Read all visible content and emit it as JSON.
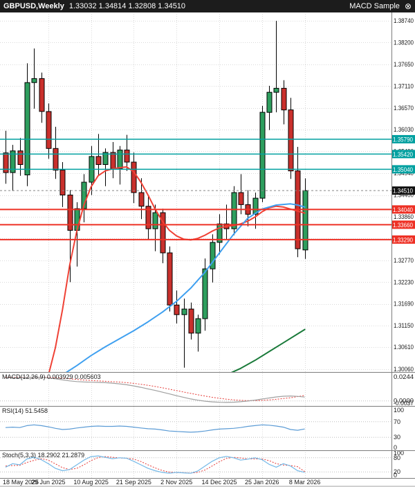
{
  "window": {
    "title_bar": {
      "symbol": "GBPUSD,Weekly",
      "ohlc": "1.33032 1.34814 1.32808 1.34510",
      "expert_name": "MACD Sample",
      "close_glyph": "⊗"
    }
  },
  "colors": {
    "bull_candle": "#2e9e5e",
    "bear_candle": "#c9302c",
    "candle_outline": "#000000",
    "ma_fast": "#ef4135",
    "ma_mid": "#3fa0f0",
    "ma_slow": "#1a7a3a",
    "teal_line": "#00a0a0",
    "red_line": "#ee3024",
    "price_marker_bg": "#111111",
    "macd_main": "#a0a0a0",
    "macd_signal": "#e53935",
    "rsi_main": "#5b9bd5",
    "stoch_main": "#74b9e8",
    "stoch_signal": "#e53935",
    "grid": "#d9d9d9",
    "level_dotted": "#bdbdbd",
    "axis_text": "#1a1a1a",
    "panel_border": "#7c7c7c",
    "titlebar_bg": "#1c1c1c",
    "titlebar_text": "#ffffff"
  },
  "price_axis_labels": [
    "1.38740",
    "1.38200",
    "1.37650",
    "1.37110",
    "1.36570",
    "1.36030",
    "1.35490",
    "1.34940",
    "1.34400",
    "1.33860",
    "1.33320",
    "1.32770",
    "1.32230",
    "1.31690",
    "1.31150",
    "1.30610",
    "1.30060"
  ],
  "levels": {
    "resistance_teal": [
      "1.35790",
      "1.35420",
      "1.35040"
    ],
    "support_red": [
      "1.34040",
      "1.33660",
      "1.33290"
    ],
    "current_price": "1.34510"
  },
  "chart_data": {
    "type": "candlestick",
    "title": "GBPUSD Weekly",
    "ylim": [
      1.299,
      1.3888
    ],
    "x_tick_indices": [
      0,
      6,
      12,
      18,
      24,
      30,
      36,
      42
    ],
    "x_tick_labels": [
      "18 May 2025",
      "29 Jun 2025",
      "10 Aug 2025",
      "21 Sep 2025",
      "2 Nov 2025",
      "14 Dec 2025",
      "25 Jan 2026",
      "8 Mar 2026"
    ],
    "ohlc": [
      [
        1.3545,
        1.36,
        1.3468,
        1.3496
      ],
      [
        1.3496,
        1.3565,
        1.345,
        1.355
      ],
      [
        1.355,
        1.3582,
        1.3488,
        1.3516
      ],
      [
        1.349,
        1.3768,
        1.3462,
        1.372
      ],
      [
        1.372,
        1.3805,
        1.3655,
        1.373
      ],
      [
        1.373,
        1.3745,
        1.362,
        1.3648
      ],
      [
        1.3648,
        1.3668,
        1.353,
        1.3556
      ],
      [
        1.3556,
        1.361,
        1.348,
        1.3502
      ],
      [
        1.3502,
        1.3522,
        1.341,
        1.344
      ],
      [
        1.344,
        1.3452,
        1.3223,
        1.3352
      ],
      [
        1.3352,
        1.3422,
        1.3262,
        1.3406
      ],
      [
        1.3406,
        1.3492,
        1.3372,
        1.3472
      ],
      [
        1.3472,
        1.3562,
        1.344,
        1.3536
      ],
      [
        1.3536,
        1.3592,
        1.349,
        1.3516
      ],
      [
        1.3516,
        1.3556,
        1.3462,
        1.3546
      ],
      [
        1.3546,
        1.3572,
        1.3482,
        1.3506
      ],
      [
        1.3506,
        1.3562,
        1.3466,
        1.3552
      ],
      [
        1.3552,
        1.359,
        1.35,
        1.3522
      ],
      [
        1.3522,
        1.3546,
        1.342,
        1.3446
      ],
      [
        1.3446,
        1.3482,
        1.338,
        1.3412
      ],
      [
        1.3412,
        1.344,
        1.333,
        1.3356
      ],
      [
        1.3356,
        1.3416,
        1.33,
        1.3396
      ],
      [
        1.3396,
        1.3406,
        1.327,
        1.3296
      ],
      [
        1.3296,
        1.3312,
        1.315,
        1.3166
      ],
      [
        1.3166,
        1.3202,
        1.312,
        1.3142
      ],
      [
        1.3142,
        1.3182,
        1.301,
        1.3156
      ],
      [
        1.3156,
        1.3172,
        1.308,
        1.3096
      ],
      [
        1.3096,
        1.3142,
        1.305,
        1.3132
      ],
      [
        1.3132,
        1.3282,
        1.3102,
        1.3256
      ],
      [
        1.3256,
        1.3342,
        1.3222,
        1.3322
      ],
      [
        1.3322,
        1.3392,
        1.3292,
        1.3368
      ],
      [
        1.3368,
        1.3416,
        1.333,
        1.3356
      ],
      [
        1.3356,
        1.3462,
        1.334,
        1.3446
      ],
      [
        1.3446,
        1.3492,
        1.3392,
        1.3416
      ],
      [
        1.3416,
        1.3452,
        1.3362,
        1.3392
      ],
      [
        1.3392,
        1.3446,
        1.3356,
        1.3432
      ],
      [
        1.3432,
        1.3662,
        1.3422,
        1.3646
      ],
      [
        1.3646,
        1.3712,
        1.3602,
        1.3696
      ],
      [
        1.3696,
        1.3874,
        1.3646,
        1.3706
      ],
      [
        1.3706,
        1.3726,
        1.3616,
        1.3652
      ],
      [
        1.3652,
        1.3682,
        1.348,
        1.35
      ],
      [
        1.35,
        1.356,
        1.3285,
        1.3306
      ],
      [
        1.33032,
        1.34814,
        1.32808,
        1.3451
      ]
    ],
    "overlays": [
      {
        "name": "ma-fast-red",
        "color_key": "ma_fast",
        "points": [
          [
            6,
            1.299
          ],
          [
            7,
            1.306
          ],
          [
            8,
            1.3155
          ],
          [
            9,
            1.3265
          ],
          [
            10,
            1.335
          ],
          [
            11,
            1.3415
          ],
          [
            12,
            1.346
          ],
          [
            13,
            1.3488
          ],
          [
            14,
            1.35
          ],
          [
            15,
            1.3505
          ],
          [
            16,
            1.3508
          ],
          [
            17,
            1.351
          ],
          [
            18,
            1.3498
          ],
          [
            19,
            1.3472
          ],
          [
            20,
            1.344
          ],
          [
            21,
            1.3405
          ],
          [
            22,
            1.3375
          ],
          [
            23,
            1.3352
          ],
          [
            24,
            1.3338
          ],
          [
            25,
            1.333
          ],
          [
            26,
            1.3328
          ],
          [
            27,
            1.3332
          ],
          [
            28,
            1.334
          ],
          [
            29,
            1.335
          ],
          [
            30,
            1.3358
          ],
          [
            31,
            1.3362
          ],
          [
            32,
            1.3364
          ],
          [
            33,
            1.3368
          ],
          [
            34,
            1.3375
          ],
          [
            35,
            1.3385
          ],
          [
            36,
            1.3398
          ],
          [
            37,
            1.3408
          ],
          [
            38,
            1.3412
          ],
          [
            39,
            1.341
          ],
          [
            40,
            1.3405
          ],
          [
            41,
            1.34
          ],
          [
            42,
            1.3395
          ]
        ]
      },
      {
        "name": "ma-mid-blue",
        "color_key": "ma_mid",
        "points": [
          [
            8,
            1.2992
          ],
          [
            10,
            1.3015
          ],
          [
            12,
            1.304
          ],
          [
            14,
            1.3062
          ],
          [
            16,
            1.3082
          ],
          [
            18,
            1.3102
          ],
          [
            20,
            1.3124
          ],
          [
            22,
            1.3148
          ],
          [
            24,
            1.3175
          ],
          [
            26,
            1.3208
          ],
          [
            28,
            1.3248
          ],
          [
            30,
            1.3295
          ],
          [
            32,
            1.3342
          ],
          [
            34,
            1.3382
          ],
          [
            36,
            1.3405
          ],
          [
            38,
            1.3415
          ],
          [
            40,
            1.3418
          ],
          [
            41,
            1.3415
          ],
          [
            42,
            1.341
          ]
        ]
      },
      {
        "name": "ma-slow-green",
        "color_key": "ma_slow",
        "points": [
          [
            31,
            1.2992
          ],
          [
            33,
            1.3008
          ],
          [
            35,
            1.3028
          ],
          [
            37,
            1.305
          ],
          [
            39,
            1.3072
          ],
          [
            41,
            1.3094
          ],
          [
            42,
            1.3105
          ]
        ]
      }
    ],
    "indicators": {
      "macd": {
        "label": "MACD(12,26,9) 0.003929 0.005603",
        "axis_labels": [
          "0.0244",
          "0.0000",
          "-0.0037"
        ],
        "levels": [
          0
        ],
        "main": [
          0.0235,
          0.0236,
          0.0234,
          0.0238,
          0.0241,
          0.0239,
          0.0233,
          0.0224,
          0.0213,
          0.0203,
          0.0196,
          0.0192,
          0.019,
          0.0188,
          0.0185,
          0.018,
          0.0173,
          0.0164,
          0.0152,
          0.0138,
          0.0122,
          0.0106,
          0.0089,
          0.0071,
          0.0053,
          0.0036,
          0.002,
          0.0007,
          -0.0003,
          -0.001,
          -0.0014,
          -0.0015,
          -0.0013,
          -0.0008,
          -0.0001,
          0.0008,
          0.0019,
          0.003,
          0.004,
          0.0047,
          0.005,
          0.0046,
          0.0039
        ],
        "signal": [
          0.024,
          0.024,
          0.0239,
          0.0239,
          0.024,
          0.024,
          0.0238,
          0.0235,
          0.023,
          0.0224,
          0.0218,
          0.0212,
          0.0207,
          0.0203,
          0.0199,
          0.0195,
          0.0191,
          0.0185,
          0.0178,
          0.0169,
          0.0158,
          0.0146,
          0.0133,
          0.0119,
          0.0105,
          0.009,
          0.0076,
          0.0062,
          0.0049,
          0.0037,
          0.0027,
          0.0018,
          0.0011,
          0.0006,
          0.0003,
          0.0003,
          0.0005,
          0.001,
          0.0016,
          0.0024,
          0.0032,
          0.0044,
          0.0056
        ]
      },
      "rsi": {
        "label": "RSI(14) 51.5458",
        "axis_labels": [
          "100",
          "70",
          "30",
          "0"
        ],
        "levels": [
          70,
          30
        ],
        "main": [
          55,
          56,
          55,
          60,
          62,
          60,
          57,
          53,
          50,
          51,
          54,
          56,
          58,
          59,
          58,
          58,
          59,
          58,
          56,
          54,
          52,
          51,
          49,
          46,
          45,
          44,
          43,
          44,
          46,
          49,
          51,
          52,
          53,
          55,
          58,
          60,
          62,
          61,
          59,
          56,
          50,
          48,
          51.5
        ]
      },
      "stoch": {
        "label": "Stoch(5,3,3) 18.2902 21.2879",
        "axis_labels": [
          "100",
          "80",
          "20",
          "0"
        ],
        "levels": [
          80,
          20
        ],
        "main": [
          40,
          55,
          50,
          75,
          82,
          72,
          55,
          35,
          25,
          30,
          50,
          70,
          85,
          88,
          82,
          76,
          80,
          78,
          65,
          50,
          35,
          25,
          18,
          14,
          18,
          16,
          14,
          24,
          45,
          65,
          80,
          86,
          80,
          70,
          74,
          80,
          72,
          52,
          40,
          55,
          45,
          25,
          18.3
        ],
        "signal": [
          45,
          47,
          48,
          60,
          69,
          76,
          70,
          54,
          38,
          30,
          35,
          50,
          68,
          81,
          85,
          82,
          79,
          78,
          74,
          64,
          50,
          37,
          26,
          19,
          17,
          17,
          15,
          18,
          28,
          45,
          63,
          77,
          82,
          79,
          75,
          75,
          75,
          68,
          55,
          49,
          47,
          42,
          21.3
        ]
      }
    }
  }
}
